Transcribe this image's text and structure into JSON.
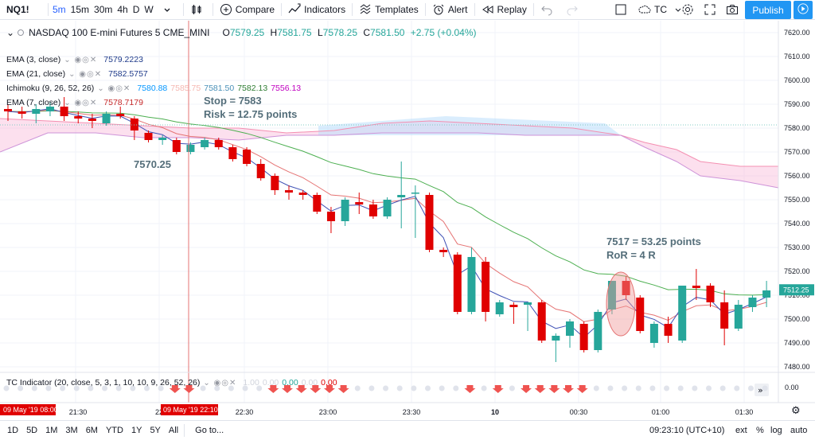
{
  "toolbar": {
    "symbol": "NQ1!",
    "intervals": [
      "5m",
      "15m",
      "30m",
      "4h",
      "D",
      "W"
    ],
    "active_interval": "5m",
    "compare": "Compare",
    "indicators": "Indicators",
    "templates": "Templates",
    "alert": "Alert",
    "replay": "Replay",
    "tc_label": "TC",
    "publish": "Publish"
  },
  "legend": {
    "title": "NASDAQ 100 E-mini Futures  5  CME_MINI",
    "open": "7579.25",
    "high": "7581.75",
    "low": "7578.25",
    "close": "7581.50",
    "change": "+2.75 (+0.04%)",
    "o_key": "O",
    "h_key": "H",
    "l_key": "L",
    "c_key": "C",
    "ema3_label": "EMA (3, close)",
    "ema3_value": "7579.2223",
    "ema21_label": "EMA (21, close)",
    "ema21_value": "7582.5757",
    "ichimoku_label": "Ichimoku (9, 26, 52, 26)",
    "ichimoku_values": [
      "7580.88",
      "7585.75",
      "7581.50",
      "7582.13",
      "7556.13"
    ],
    "ema7_label": "EMA (7, close)",
    "ema7_value": "7578.7179",
    "tc_label": "TC Indicator (20, close, 5, 3, 1, 10, 10, 9, 26, 52, 26)",
    "tc_values": [
      "1.00",
      "0.00",
      "0.00",
      "0.00",
      "0.00"
    ]
  },
  "annotations": {
    "stop": "Stop = 7583",
    "risk": "Risk = 12.75 points",
    "entry": "7570.25",
    "target": "7517 = 53.25 points",
    "ror": "RoR = 4 R"
  },
  "price_axis": {
    "ticks": [
      "7620.00",
      "7610.00",
      "7600.00",
      "7590.00",
      "7580.00",
      "7570.00",
      "7560.00",
      "7550.00",
      "7540.00",
      "7530.00",
      "7520.00",
      "7510.00",
      "7500.00",
      "7490.00",
      "7480.00"
    ],
    "current_price": "7512.25",
    "indicator_tick": "0.00"
  },
  "time_axis": {
    "ticks": [
      "21:30",
      "22",
      "22:30",
      "23:00",
      "23:30",
      "10",
      "00:30",
      "01:00",
      "01:30"
    ],
    "left_badge": "09 May '19   08:00",
    "cursor_badge": "09 May '19   22:10"
  },
  "bottombar": {
    "ranges": [
      "1D",
      "5D",
      "1M",
      "3M",
      "6M",
      "YTD",
      "1Y",
      "5Y",
      "All"
    ],
    "goto": "Go to...",
    "clock": "09:23:10 (UTC+10)",
    "ext": "ext",
    "pct": "%",
    "log": "log",
    "auto": "auto"
  },
  "colors": {
    "up": "#26a69a",
    "down": "#e00000",
    "cloud_bear": "#f8bbd9",
    "cloud_bull": "#bbdefb",
    "accent": "#2196f3",
    "annotation": "#546e7a"
  },
  "chart_data": {
    "type": "candlestick",
    "candles": [
      {
        "o": 7588,
        "h": 7590,
        "l": 7583,
        "c": 7587
      },
      {
        "o": 7587,
        "h": 7589,
        "l": 7584,
        "c": 7586
      },
      {
        "o": 7586,
        "h": 7590,
        "l": 7582,
        "c": 7588
      },
      {
        "o": 7587,
        "h": 7591,
        "l": 7585,
        "c": 7589
      },
      {
        "o": 7589,
        "h": 7593,
        "l": 7583,
        "c": 7585
      },
      {
        "o": 7585,
        "h": 7587,
        "l": 7582,
        "c": 7584
      },
      {
        "o": 7584,
        "h": 7586,
        "l": 7580,
        "c": 7583
      },
      {
        "o": 7582,
        "h": 7587,
        "l": 7581,
        "c": 7586
      },
      {
        "o": 7586,
        "h": 7589,
        "l": 7584,
        "c": 7585
      },
      {
        "o": 7584,
        "h": 7585,
        "l": 7575,
        "c": 7579
      },
      {
        "o": 7578,
        "h": 7579,
        "l": 7574,
        "c": 7575
      },
      {
        "o": 7575,
        "h": 7577,
        "l": 7573,
        "c": 7576
      },
      {
        "o": 7575,
        "h": 7576,
        "l": 7569,
        "c": 7570
      },
      {
        "o": 7570,
        "h": 7574,
        "l": 7569,
        "c": 7573
      },
      {
        "o": 7572,
        "h": 7576,
        "l": 7571,
        "c": 7575
      },
      {
        "o": 7575,
        "h": 7576,
        "l": 7571,
        "c": 7572
      },
      {
        "o": 7572,
        "h": 7573,
        "l": 7566,
        "c": 7567
      },
      {
        "o": 7571,
        "h": 7572,
        "l": 7564,
        "c": 7565
      },
      {
        "o": 7565,
        "h": 7567,
        "l": 7558,
        "c": 7559
      },
      {
        "o": 7560,
        "h": 7561,
        "l": 7552,
        "c": 7554
      },
      {
        "o": 7554,
        "h": 7556,
        "l": 7550,
        "c": 7553
      },
      {
        "o": 7553,
        "h": 7554,
        "l": 7550,
        "c": 7552
      },
      {
        "o": 7552,
        "h": 7553,
        "l": 7544,
        "c": 7545
      },
      {
        "o": 7545,
        "h": 7547,
        "l": 7536,
        "c": 7541
      },
      {
        "o": 7541,
        "h": 7551,
        "l": 7539,
        "c": 7550
      },
      {
        "o": 7549,
        "h": 7553,
        "l": 7544,
        "c": 7548
      },
      {
        "o": 7548,
        "h": 7550,
        "l": 7542,
        "c": 7543
      },
      {
        "o": 7543,
        "h": 7551,
        "l": 7542,
        "c": 7550
      },
      {
        "o": 7551,
        "h": 7566,
        "l": 7538,
        "c": 7552
      },
      {
        "o": 7553,
        "h": 7556,
        "l": 7534,
        "c": 7553
      },
      {
        "o": 7552,
        "h": 7553,
        "l": 7528,
        "c": 7529
      },
      {
        "o": 7529,
        "h": 7530,
        "l": 7526,
        "c": 7528
      },
      {
        "o": 7527,
        "h": 7528,
        "l": 7502,
        "c": 7503
      },
      {
        "o": 7503,
        "h": 7530,
        "l": 7502,
        "c": 7526
      },
      {
        "o": 7524,
        "h": 7526,
        "l": 7499,
        "c": 7503
      },
      {
        "o": 7502,
        "h": 7508,
        "l": 7501,
        "c": 7507
      },
      {
        "o": 7506,
        "h": 7507,
        "l": 7498,
        "c": 7505
      },
      {
        "o": 7506,
        "h": 7507,
        "l": 7495,
        "c": 7507
      },
      {
        "o": 7507,
        "h": 7508,
        "l": 7490,
        "c": 7491
      },
      {
        "o": 7491,
        "h": 7494,
        "l": 7482,
        "c": 7493
      },
      {
        "o": 7493,
        "h": 7500,
        "l": 7488,
        "c": 7499
      },
      {
        "o": 7498,
        "h": 7499,
        "l": 7486,
        "c": 7487
      },
      {
        "o": 7487,
        "h": 7504,
        "l": 7486,
        "c": 7503
      },
      {
        "o": 7504,
        "h": 7516,
        "l": 7502,
        "c": 7516
      },
      {
        "o": 7516,
        "h": 7518,
        "l": 7508,
        "c": 7510
      },
      {
        "o": 7509,
        "h": 7510,
        "l": 7494,
        "c": 7495
      },
      {
        "o": 7490,
        "h": 7499,
        "l": 7488,
        "c": 7498
      },
      {
        "o": 7498,
        "h": 7501,
        "l": 7490,
        "c": 7493
      },
      {
        "o": 7491,
        "h": 7514,
        "l": 7490,
        "c": 7514
      },
      {
        "o": 7514,
        "h": 7521,
        "l": 7508,
        "c": 7513
      },
      {
        "o": 7514,
        "h": 7515,
        "l": 7505,
        "c": 7507
      },
      {
        "o": 7507,
        "h": 7512,
        "l": 7489,
        "c": 7496
      },
      {
        "o": 7496,
        "h": 7508,
        "l": 7495,
        "c": 7506
      },
      {
        "o": 7505,
        "h": 7510,
        "l": 7503,
        "c": 7509
      },
      {
        "o": 7509,
        "h": 7516,
        "l": 7505,
        "c": 7512
      }
    ],
    "ylim": [
      7475,
      7625
    ]
  }
}
